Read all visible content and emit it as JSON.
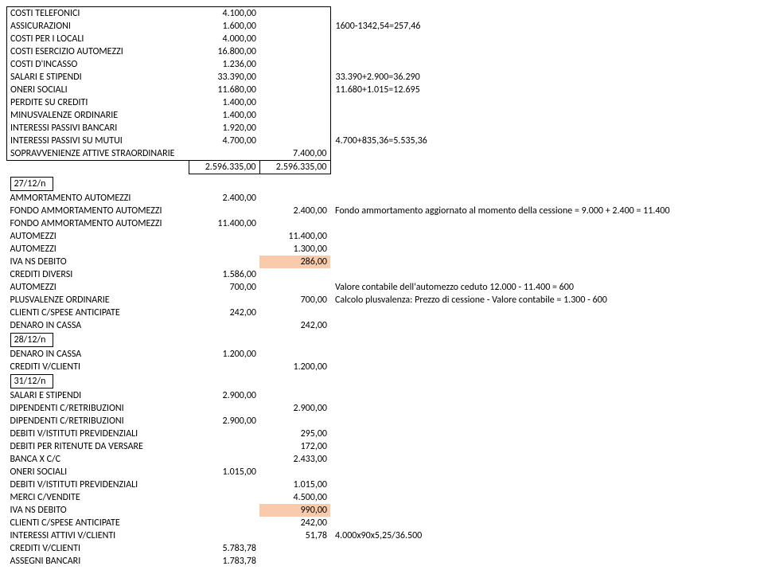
{
  "colors": {
    "highlight": "#f8cbad",
    "border": "#000000",
    "text": "#000000",
    "background": "#ffffff"
  },
  "typography": {
    "font_family": "Calibri",
    "font_size_pt": 9
  },
  "block1": {
    "rows": [
      {
        "label": "COSTI TELEFONICI",
        "amt1": "4.100,00",
        "note": ""
      },
      {
        "label": "ASSICURAZIONI",
        "amt1": "1.600,00",
        "note": "1600-1342,54=257,46"
      },
      {
        "label": "COSTI PER I LOCALI",
        "amt1": "4.000,00",
        "note": ""
      },
      {
        "label": "COSTI ESERCIZIO AUTOMEZZI",
        "amt1": "16.800,00",
        "note": ""
      },
      {
        "label": "COSTI D'INCASSO",
        "amt1": "1.236,00",
        "note": ""
      },
      {
        "label": "SALARI E STIPENDI",
        "amt1": "33.390,00",
        "note": "33.390+2.900=36.290"
      },
      {
        "label": "ONERI SOCIALI",
        "amt1": "11.680,00",
        "note": "11.680+1.015=12.695"
      },
      {
        "label": "PERDITE SU CREDITI",
        "amt1": "1.400,00",
        "note": ""
      },
      {
        "label": "MINUSVALENZE ORDINARIE",
        "amt1": "1.400,00",
        "note": ""
      },
      {
        "label": "INTERESSI PASSIVI BANCARI",
        "amt1": "1.920,00",
        "note": ""
      },
      {
        "label": "INTERESSI PASSIVI SU MUTUI",
        "amt1": "4.700,00",
        "note": "4.700+835,36=5.535,36"
      },
      {
        "label": "SOPRAVVENIENZE ATTIVE STRAORDINARIE",
        "amt2": "7.400,00",
        "note": ""
      }
    ],
    "totals": {
      "amt1": "2.596.335,00",
      "amt2": "2.596.335,00"
    }
  },
  "date1": "27/12/n",
  "block2": {
    "rows": [
      {
        "label": "AMMORTAMENTO AUTOMEZZI",
        "amt1": "2.400,00",
        "amt2": "",
        "note": ""
      },
      {
        "label": "FONDO AMMORTAMENTO AUTOMEZZI",
        "amt1": "",
        "amt2": "2.400,00",
        "note": "Fondo ammortamento aggiornato al momento della cessione = 9.000 + 2.400 = 11.400"
      },
      {
        "label": "FONDO AMMORTAMENTO AUTOMEZZI",
        "amt1": "11.400,00",
        "amt2": "",
        "note": ""
      },
      {
        "label": "AUTOMEZZI",
        "amt1": "",
        "amt2": "11.400,00",
        "note": ""
      },
      {
        "label": "AUTOMEZZI",
        "amt1": "",
        "amt2": "1.300,00",
        "note": ""
      },
      {
        "label": "IVA NS DEBITO",
        "amt1": "",
        "amt2": "286,00",
        "note": "",
        "hl2": true
      },
      {
        "label": "CREDITI DIVERSI",
        "amt1": "1.586,00",
        "amt2": "",
        "note": ""
      },
      {
        "label": "AUTOMEZZI",
        "amt1": "700,00",
        "amt2": "",
        "note": "Valore contabile dell'automezzo ceduto 12.000 - 11.400 = 600"
      },
      {
        "label": "PLUSVALENZE ORDINARIE",
        "amt1": "",
        "amt2": "700,00",
        "note": "Calcolo plusvalenza: Prezzo di cessione - Valore contabile = 1.300 - 600"
      },
      {
        "label": "CLIENTI C/SPESE ANTICIPATE",
        "amt1": "242,00",
        "amt2": "",
        "note": ""
      },
      {
        "label": "DENARO IN CASSA",
        "amt1": "",
        "amt2": "242,00",
        "note": ""
      }
    ]
  },
  "date2": "28/12/n",
  "block3": {
    "rows": [
      {
        "label": "DENARO IN CASSA",
        "amt1": "1.200,00",
        "amt2": "",
        "note": ""
      },
      {
        "label": "CREDITI V/CLIENTI",
        "amt1": "",
        "amt2": "1.200,00",
        "note": ""
      }
    ]
  },
  "date3": "31/12/n",
  "block4": {
    "rows": [
      {
        "label": "SALARI E STIPENDI",
        "amt1": "2.900,00",
        "amt2": "",
        "note": ""
      },
      {
        "label": "DIPENDENTI C/RETRIBUZIONI",
        "amt1": "",
        "amt2": "2.900,00",
        "note": ""
      },
      {
        "label": "DIPENDENTI C/RETRIBUZIONI",
        "amt1": "2.900,00",
        "amt2": "",
        "note": ""
      },
      {
        "label": "DEBITI V/ISTITUTI PREVIDENZIALI",
        "amt1": "",
        "amt2": "295,00",
        "note": ""
      },
      {
        "label": "DEBITI PER RITENUTE DA VERSARE",
        "amt1": "",
        "amt2": "172,00",
        "note": ""
      },
      {
        "label": "BANCA X C/C",
        "amt1": "",
        "amt2": "2.433,00",
        "note": ""
      },
      {
        "label": "ONERI SOCIALI",
        "amt1": "1.015,00",
        "amt2": "",
        "note": ""
      },
      {
        "label": "DEBITI V/ISTITUTI PREVIDENZIALI",
        "amt1": "",
        "amt2": "1.015,00",
        "note": ""
      },
      {
        "label": "MERCI C/VENDITE",
        "amt1": "",
        "amt2": "4.500,00",
        "note": ""
      },
      {
        "label": "IVA NS DEBITO",
        "amt1": "",
        "amt2": "990,00",
        "note": "",
        "hl2": true
      },
      {
        "label": "CLIENTI C/SPESE ANTICIPATE",
        "amt1": "",
        "amt2": "242,00",
        "note": ""
      },
      {
        "label": "INTERESSI ATTIVI V/CLIENTI",
        "amt1": "",
        "amt2": "51,78",
        "note": "4.000x90x5,25/36.500"
      },
      {
        "label": "CREDITI V/CLIENTI",
        "amt1": "5.783,78",
        "amt2": "",
        "note": ""
      },
      {
        "label": "ASSEGNI BANCARI",
        "amt1": "1.783,78",
        "amt2": "",
        "note": ""
      }
    ]
  }
}
